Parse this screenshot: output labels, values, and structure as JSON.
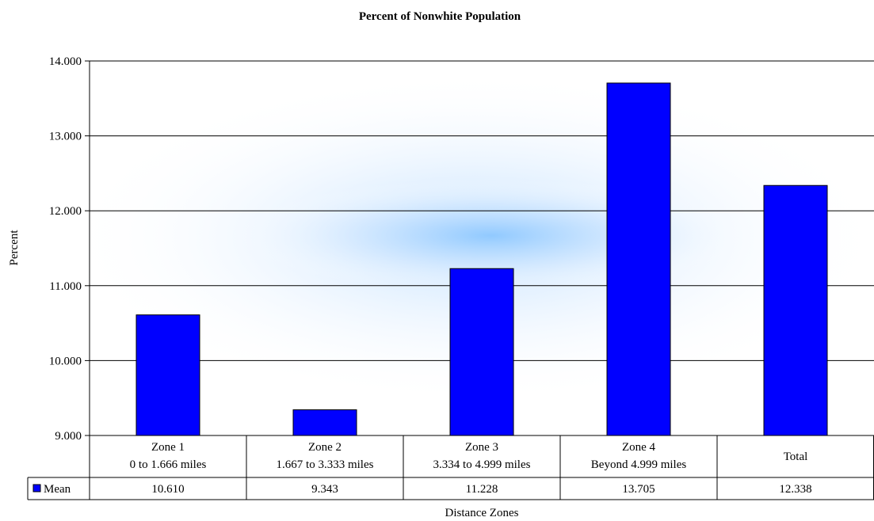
{
  "chart_data": {
    "type": "bar",
    "title": "Percent of Nonwhite Population",
    "xlabel": "Distance Zones",
    "ylabel": "Percent",
    "ylim": [
      9.0,
      14.0
    ],
    "yticks": [
      "9.000",
      "10.000",
      "11.000",
      "12.000",
      "13.000",
      "14.000"
    ],
    "grid": true,
    "categories": [
      [
        "Zone 1",
        "0 to 1.666 miles"
      ],
      [
        "Zone 2",
        "1.667 to 3.333 miles"
      ],
      [
        "Zone 3",
        "3.334 to 4.999 miles"
      ],
      [
        "Zone 4",
        "Beyond 4.999 miles"
      ],
      [
        "Total"
      ]
    ],
    "series": [
      {
        "name": "Mean",
        "color": "#0000ff",
        "values": [
          10.61,
          9.343,
          11.228,
          13.705,
          12.338
        ],
        "value_labels": [
          "10.610",
          "9.343",
          "11.228",
          "13.705",
          "12.338"
        ]
      }
    ]
  }
}
